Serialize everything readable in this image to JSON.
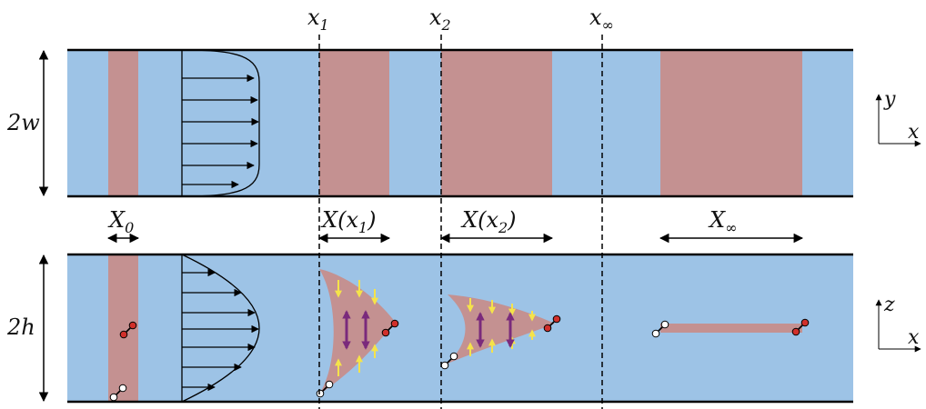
{
  "colors": {
    "channel_fill": "#9dc3e6",
    "band_fill": "#c49191",
    "wall": "#000000",
    "yellow_arrow": "#f5e34a",
    "purple_arrow": "#7a2a7c",
    "particle_red": "#d1302b",
    "particle_white": "#ffffff"
  },
  "positions": {
    "x1": "x",
    "x1_sub": "1",
    "x2": "x",
    "x2_sub": "2",
    "xinf": "x",
    "xinf_sub": "∞"
  },
  "widths": {
    "X0": "X",
    "X0_sub": "0",
    "Xx1_pre": "X(x",
    "Xx1_sub": "1",
    "Xx1_post": ")",
    "Xx2_pre": "X(x",
    "Xx2_sub": "2",
    "Xx2_post": ")",
    "Xinf": "X",
    "Xinf_sub": "∞"
  },
  "dimensions": {
    "top": "2w",
    "bottom": "2h"
  },
  "axes_top": {
    "vertical": "y",
    "horizontal": "x"
  },
  "axes_bottom": {
    "vertical": "z",
    "horizontal": "x"
  },
  "icons": {
    "particle": "dumbbell-particle-icon",
    "arrow": "arrow-icon"
  }
}
